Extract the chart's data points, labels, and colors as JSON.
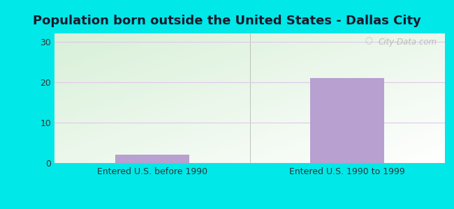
{
  "title": "Population born outside the United States - Dallas City",
  "categories": [
    "Entered U.S. before 1990",
    "Entered U.S. 1990 to 1999"
  ],
  "values": [
    2,
    21
  ],
  "bar_color": "#b8a0d0",
  "ylim": [
    0,
    32
  ],
  "yticks": [
    0,
    10,
    20,
    30
  ],
  "outer_bg": "#00e8e8",
  "title_fontsize": 13,
  "tick_fontsize": 9,
  "label_fontsize": 9,
  "watermark": "City-Data.com",
  "grid_color": "#e0c8e8",
  "label_color": "#333333",
  "title_color": "#1a1a2e"
}
